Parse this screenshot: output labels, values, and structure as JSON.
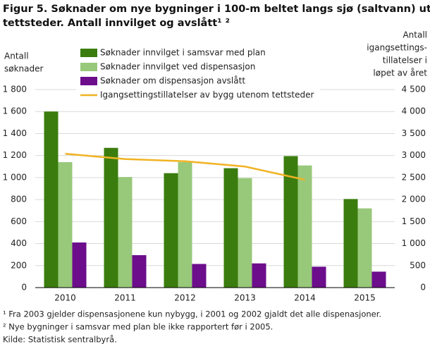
{
  "chart_data": {
    "type": "bar",
    "title": "Figur 5. Søknader om nye bygninger i 100-m beltet langs sjø (saltvann) utenom tettsteder. Antall innvilget og avslått¹ ²",
    "y_label": [
      "Antall",
      "søknader"
    ],
    "y2_label": [
      "Antall",
      "igangsettings-",
      "tillatelser  i",
      "løpet av året"
    ],
    "categories": [
      "2010",
      "2011",
      "2012",
      "2013",
      "2014",
      "2015"
    ],
    "series": [
      {
        "name": "Søknader innvilget i samsvar med plan",
        "color": "#3a7d0e",
        "type": "bar",
        "values": [
          1600,
          1270,
          1040,
          1085,
          1195,
          805
        ]
      },
      {
        "name": "Søknader innvilget ved dispensasjon",
        "color": "#98c87a",
        "type": "bar",
        "values": [
          1140,
          1005,
          1140,
          995,
          1110,
          720
        ]
      },
      {
        "name": "Søknader om dispensasjon avslått",
        "color": "#6c0d8c",
        "type": "bar",
        "values": [
          410,
          295,
          215,
          220,
          190,
          145
        ]
      },
      {
        "name": "Igangsettingstillatelser av bygg utenom tettsteder",
        "color": "#f0b323",
        "type": "line",
        "axis": "y2",
        "values": [
          3040,
          2920,
          2870,
          2750,
          2450,
          null
        ]
      }
    ],
    "ylim": [
      0,
      1800
    ],
    "yticks": [
      0,
      200,
      400,
      600,
      800,
      {
        "value": 1000,
        "label": "1 000"
      },
      {
        "value": 1200,
        "label": "1 200"
      },
      {
        "value": 1400,
        "label": "1 400"
      },
      {
        "value": 1600,
        "label": "1 600"
      },
      {
        "value": 1800,
        "label": "1 800"
      }
    ],
    "y2lim": [
      0,
      4500
    ],
    "y2ticks": [
      0,
      500,
      {
        "value": 1000,
        "label": "1 000"
      },
      {
        "value": 1500,
        "label": "1 500"
      },
      {
        "value": 2000,
        "label": "2 000"
      },
      {
        "value": 2500,
        "label": "2 500"
      },
      {
        "value": 3000,
        "label": "3 000"
      },
      {
        "value": 3500,
        "label": "3 500"
      },
      {
        "value": 4000,
        "label": "4 000"
      },
      {
        "value": 4500,
        "label": "4 500"
      }
    ],
    "grid": true,
    "footnotes": [
      "¹ Fra 2003 gjelder dispensasjonene kun nybygg, i 2001 og 2002 gjaldt det alle dispenasjoner.",
      "² Nye bygninger i samsvar med plan ble ikke rapportert før i 2005.",
      "Kilde: Statistisk sentralbyrå."
    ]
  }
}
